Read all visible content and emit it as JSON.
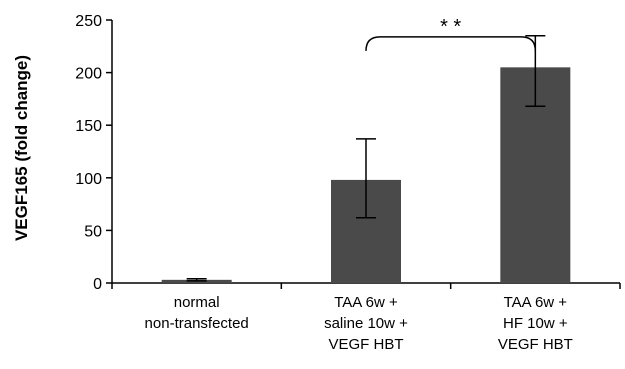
{
  "chart_data": {
    "type": "bar",
    "title": "",
    "xlabel": "",
    "ylabel": "VEGF165  (fold change)",
    "ylim": [
      0,
      250
    ],
    "yticks": [
      0,
      50,
      100,
      150,
      200,
      250
    ],
    "categories": [
      [
        "normal",
        "non-transfected"
      ],
      [
        "TAA 6w +",
        "saline 10w +",
        "VEGF HBT"
      ],
      [
        "TAA 6w +",
        "HF 10w +",
        "VEGF HBT"
      ]
    ],
    "values": [
      3,
      98,
      205
    ],
    "error_low": [
      2,
      62,
      168
    ],
    "error_high": [
      4,
      137,
      235
    ],
    "bar_color": "#4a4a4a",
    "grid": false,
    "legend": "none",
    "annotations": [
      {
        "text": "* *",
        "from_category": 1,
        "to_category": 2,
        "bracket_y": 234
      }
    ]
  }
}
